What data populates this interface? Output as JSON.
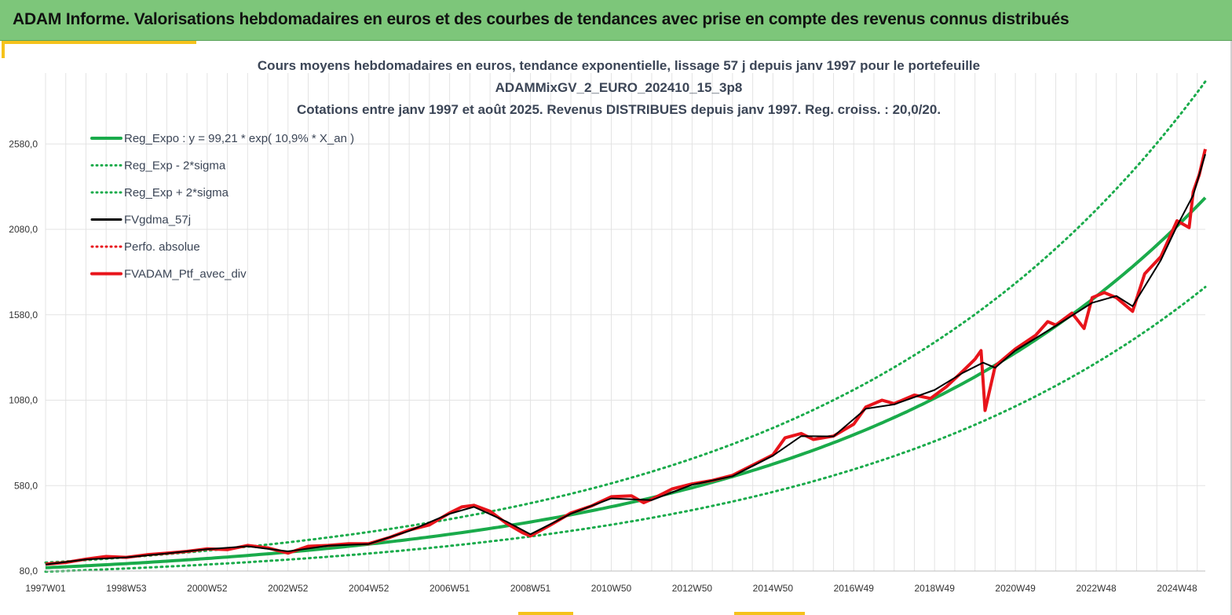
{
  "banner": {
    "title": "ADAM Informe. Valorisations hebdomadaires en euros et des courbes de tendances avec prise en compte des revenus connus distribués"
  },
  "colors": {
    "banner_bg": "#7dc67a",
    "accent": "#f5c21b",
    "trend": "#1aab4b",
    "smooth": "#000000",
    "portfolio": "#e8141b",
    "grid": "#e3e3e3"
  },
  "chart_data": {
    "type": "line",
    "title_lines": [
      "Cours moyens hebdomadaires  en euros, tendance exponentielle, lissage 57 j depuis janv 1997 pour le portefeuille",
      "ADAMMixGV_2_EURO_202410_15_3p8",
      "Cotations entre janv 1997 et août 2025. Revenus DISTRIBUES depuis janv 1997. Reg. croiss. : 20,0/20."
    ],
    "xlabel": "",
    "ylabel": "",
    "y_ticks": [
      "80,0",
      "580,0",
      "1080,0",
      "1580,0",
      "2080,0",
      "2580,0"
    ],
    "y_tick_values": [
      80,
      580,
      1080,
      1580,
      2080,
      2580
    ],
    "ylim": [
      80,
      2995
    ],
    "x_ticks": [
      "1997W01",
      "1998W53",
      "2000W52",
      "2002W52",
      "2004W52",
      "2006W51",
      "2008W51",
      "2010W50",
      "2012W50",
      "2014W50",
      "2016W49",
      "2018W49",
      "2020W49",
      "2022W48",
      "2024W48"
    ],
    "x_tick_years": [
      1997.0,
      1999.0,
      2001.0,
      2003.0,
      2005.0,
      2007.0,
      2009.0,
      2011.0,
      2013.0,
      2015.0,
      2017.0,
      2019.0,
      2021.0,
      2023.0,
      2025.0
    ],
    "xlim": [
      1997.0,
      2025.7
    ],
    "grid": true,
    "legend_position": "top-left",
    "legend": [
      {
        "label": "Reg_Expo : y = 99,21 * exp( 10,9% *  X_an )",
        "color": "#1aab4b",
        "style": "solid",
        "width": 4
      },
      {
        "label": "Reg_Exp - 2*sigma",
        "color": "#1aab4b",
        "style": "dotted",
        "width": 3
      },
      {
        "label": "Reg_Exp + 2*sigma",
        "color": "#1aab4b",
        "style": "dotted",
        "width": 3
      },
      {
        "label": "FVgdma_57j",
        "color": "#000000",
        "style": "solid",
        "width": 3
      },
      {
        "label": "Perfo. absolue",
        "color": "#e8141b",
        "style": "dotted",
        "width": 3
      },
      {
        "label": "FVADAM_Ptf_avec_div",
        "color": "#e8141b",
        "style": "solid",
        "width": 4
      }
    ],
    "trend": {
      "a": 99.21,
      "rate": 0.109,
      "sigma_factor": 1.3
    },
    "series": [
      {
        "name": "FVADAM_Ptf_avec_div",
        "x": [
          1997.0,
          1997.5,
          1998.0,
          1998.5,
          1999.0,
          1999.5,
          2000.0,
          2000.5,
          2001.0,
          2001.5,
          2002.0,
          2002.5,
          2003.0,
          2003.5,
          2004.0,
          2004.5,
          2005.0,
          2005.5,
          2006.0,
          2006.5,
          2007.0,
          2007.3,
          2007.6,
          2008.0,
          2008.4,
          2008.8,
          2009.0,
          2009.5,
          2010.0,
          2010.5,
          2011.0,
          2011.5,
          2011.8,
          2012.0,
          2012.5,
          2013.0,
          2013.5,
          2014.0,
          2014.5,
          2015.0,
          2015.3,
          2015.7,
          2016.0,
          2016.5,
          2017.0,
          2017.3,
          2017.7,
          2018.0,
          2018.5,
          2018.9,
          2019.3,
          2019.7,
          2020.0,
          2020.15,
          2020.25,
          2020.5,
          2021.0,
          2021.5,
          2021.8,
          2022.0,
          2022.4,
          2022.7,
          2022.9,
          2023.2,
          2023.5,
          2023.9,
          2024.2,
          2024.6,
          2025.0,
          2025.3,
          2025.4,
          2025.55,
          2025.7
        ],
        "values": [
          120,
          130,
          150,
          165,
          160,
          175,
          185,
          195,
          210,
          205,
          230,
          215,
          185,
          225,
          230,
          240,
          240,
          275,
          320,
          350,
          420,
          455,
          465,
          430,
          360,
          305,
          285,
          350,
          420,
          460,
          515,
          520,
          480,
          500,
          560,
          590,
          610,
          640,
          700,
          760,
          860,
          885,
          850,
          870,
          940,
          1040,
          1080,
          1060,
          1110,
          1090,
          1160,
          1250,
          1320,
          1370,
          1020,
          1280,
          1380,
          1460,
          1540,
          1520,
          1590,
          1500,
          1680,
          1710,
          1680,
          1600,
          1820,
          1920,
          2130,
          2090,
          2300,
          2400,
          2550
        ]
      },
      {
        "name": "FVgdma_57j",
        "x": [
          1997.0,
          1998.0,
          1999.0,
          2000.0,
          2001.0,
          2002.0,
          2003.0,
          2004.0,
          2005.0,
          2006.0,
          2007.0,
          2007.6,
          2008.4,
          2009.0,
          2010.0,
          2011.0,
          2012.0,
          2013.0,
          2014.0,
          2015.0,
          2015.7,
          2016.5,
          2017.3,
          2018.0,
          2019.0,
          2019.7,
          2020.2,
          2020.5,
          2021.0,
          2022.0,
          2022.9,
          2023.5,
          2023.9,
          2024.6,
          2025.0,
          2025.4,
          2025.7
        ],
        "values": [
          118,
          148,
          160,
          183,
          208,
          225,
          195,
          228,
          238,
          315,
          415,
          455,
          370,
          295,
          415,
          505,
          495,
          585,
          635,
          755,
          870,
          868,
          1030,
          1055,
          1140,
          1240,
          1300,
          1270,
          1370,
          1515,
          1650,
          1690,
          1630,
          1900,
          2100,
          2280,
          2520
        ]
      }
    ]
  }
}
